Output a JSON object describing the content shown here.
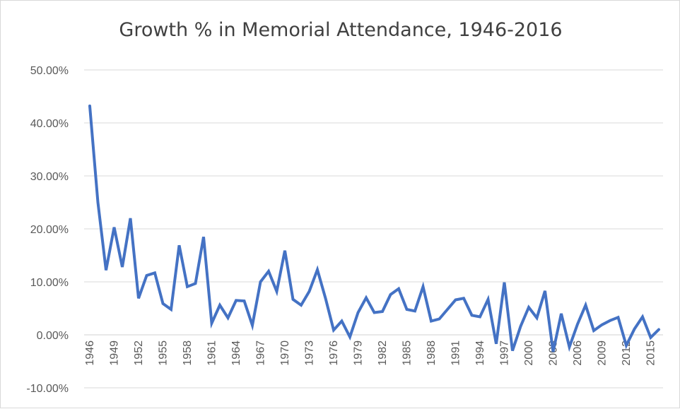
{
  "chart_data": {
    "type": "line",
    "title": "Growth % in Memorial Attendance, 1946-2016",
    "xlabel": "",
    "ylabel": "",
    "ylim": [
      -10,
      50
    ],
    "y_tick_labels": [
      "50.00%",
      "40.00%",
      "30.00%",
      "20.00%",
      "10.00%",
      "0.00%",
      "-10.00%"
    ],
    "y_tick_values": [
      50,
      40,
      30,
      20,
      10,
      0,
      -10
    ],
    "x_tick_labels": [
      "1946",
      "1949",
      "1952",
      "1955",
      "1958",
      "1961",
      "1964",
      "1967",
      "1970",
      "1973",
      "1976",
      "1979",
      "1982",
      "1985",
      "1988",
      "1991",
      "1994",
      "1997",
      "2000",
      "2003",
      "2006",
      "2009",
      "2012",
      "2015"
    ],
    "grid": true,
    "legend": "none",
    "series_color": "#4472c4",
    "series": [
      {
        "x": [
          1946,
          1947,
          1948,
          1949,
          1950,
          1951,
          1952,
          1953,
          1954,
          1955,
          1956,
          1957,
          1958,
          1959,
          1960,
          1961,
          1962,
          1963,
          1964,
          1965,
          1966,
          1967,
          1968,
          1969,
          1970,
          1971,
          1972,
          1973,
          1974,
          1975,
          1976,
          1977,
          1978,
          1979,
          1980,
          1981,
          1982,
          1983,
          1984,
          1985,
          1986,
          1987,
          1988,
          1989,
          1990,
          1991,
          1992,
          1993,
          1994,
          1995,
          1996,
          1997,
          1998,
          1999,
          2000,
          2001,
          2002,
          2003,
          2004,
          2005,
          2006,
          2007,
          2008,
          2009,
          2010,
          2011,
          2012,
          2013,
          2014,
          2015,
          2016
        ],
        "values": [
          43.2,
          25.0,
          12.2,
          20.3,
          12.8,
          22.0,
          6.9,
          11.2,
          11.7,
          5.9,
          4.8,
          16.9,
          9.1,
          9.7,
          18.5,
          2.2,
          5.6,
          3.2,
          6.5,
          6.4,
          1.8,
          10.0,
          12.0,
          8.2,
          15.9,
          6.7,
          5.6,
          8.2,
          12.3,
          6.9,
          0.9,
          2.6,
          -0.4,
          4.2,
          7.0,
          4.2,
          4.4,
          7.6,
          8.7,
          4.8,
          4.5,
          9.1,
          2.6,
          3.0,
          4.8,
          6.6,
          6.9,
          3.7,
          3.4,
          6.7,
          -1.7,
          9.9,
          -3.0,
          1.6,
          5.2,
          3.2,
          8.3,
          -3.2,
          4.0,
          -2.3,
          2.0,
          5.6,
          0.8,
          1.9,
          2.7,
          3.3,
          -2.0,
          1.1,
          3.4,
          -0.5,
          1.0
        ]
      }
    ]
  }
}
